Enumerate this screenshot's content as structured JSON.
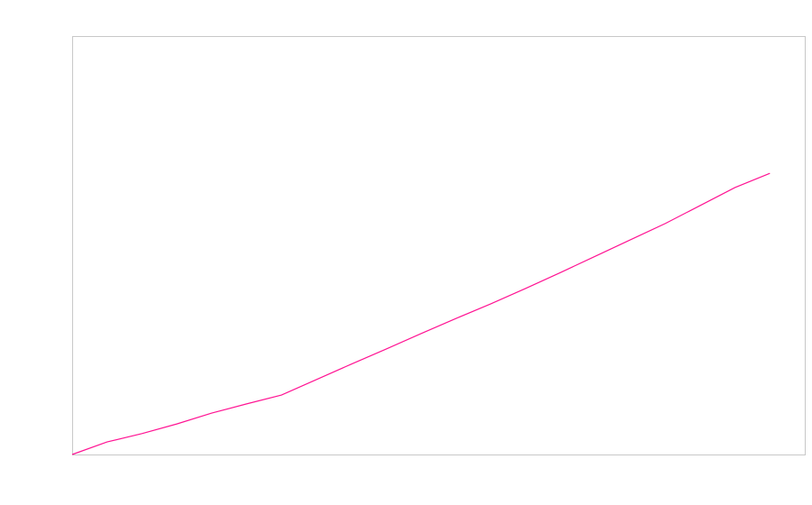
{
  "chart_data": {
    "type": "line",
    "x": [
      0,
      1,
      2,
      3,
      4,
      5,
      6,
      7,
      8,
      9,
      10,
      11,
      12,
      13,
      14,
      15,
      16,
      17,
      18,
      19,
      20
    ],
    "values": [
      0,
      3.0,
      5.0,
      7.3,
      9.9,
      12.1,
      14.2,
      17.9,
      21.6,
      25.2,
      28.9,
      32.5,
      36.0,
      39.7,
      43.5,
      47.4,
      51.3,
      55.2,
      59.5,
      63.8,
      67.2
    ],
    "color": "#ff1493",
    "xlim": [
      0,
      21
    ],
    "ylim": [
      0,
      100
    ]
  }
}
